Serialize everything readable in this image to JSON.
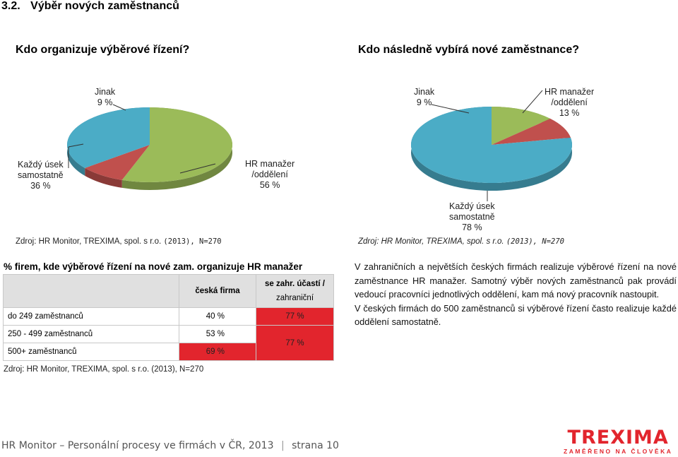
{
  "section": {
    "number": "3.2.",
    "title": "Výběr nových zaměstnanců"
  },
  "left_chart": {
    "question": "Kdo organizuje výběrové řízení?",
    "labels": [
      {
        "line1": "Jinak",
        "line2": "9 %"
      },
      {
        "line1": "Každý úsek",
        "line2": "samostatně",
        "line3": "36 %"
      },
      {
        "line1": "HR manažer",
        "line2": "/oddělení",
        "line3": "56 %"
      }
    ],
    "source": {
      "prefix": "Zdroj: HR Monitor, TREXIMA, spol. s r.o.",
      "suffix": "(2013), N=270"
    }
  },
  "right_chart": {
    "question": "Kdo následně vybírá nové zaměstnance?",
    "labels": [
      {
        "line1": "Jinak",
        "line2": "9 %"
      },
      {
        "line1": "HR manažer",
        "line2": "/oddělení",
        "line3": "13 %"
      },
      {
        "line1": "Každý úsek",
        "line2": "samostatně",
        "line3": "78 %"
      }
    ],
    "source": {
      "prefix": "Zdroj: HR Monitor, TREXIMA, spol. s r.o.",
      "suffix": "(2013), N=270"
    }
  },
  "chart_data": [
    {
      "type": "pie",
      "title": "Kdo organizuje výběrové řízení?",
      "categories": [
        "HR manažer /oddělení",
        "Jinak",
        "Každý úsek samostatně"
      ],
      "values": [
        56,
        9,
        36
      ],
      "unit": "%",
      "colors": [
        "#9bbb59",
        "#c0504d",
        "#4bacc6"
      ]
    },
    {
      "type": "pie",
      "title": "Kdo následně vybírá nové zaměstnance?",
      "categories": [
        "HR manažer /oddělení",
        "Jinak",
        "Každý úsek samostatně"
      ],
      "values": [
        13,
        9,
        78
      ],
      "unit": "%",
      "colors": [
        "#9bbb59",
        "#c0504d",
        "#4bacc6"
      ]
    }
  ],
  "table": {
    "title": "% firem, kde výběrové řízení na nové zam. organizuje HR manažer",
    "col1": "česká firma",
    "col2_line1": "se zahr. účastí /",
    "col2_line2": "zahraniční",
    "rows": [
      {
        "label": "do 249 zaměstnanců",
        "czech": "40 %",
        "foreign": "77 %"
      },
      {
        "label": "250 - 499 zaměstnanců",
        "czech": "53 %"
      },
      {
        "label": "500+ zaměstnanců",
        "czech": "69 %"
      }
    ],
    "merged_foreign": "77 %",
    "source": "Zdroj: HR Monitor, TREXIMA, spol. s r.o. (2013), N=270"
  },
  "paragraphs": [
    "V zahraničních a největších českých firmách realizuje výběrové řízení na nové zaměstnance HR manažer. Samotný výběr nových zaměstnanců pak provádí vedoucí pracovníci jednotlivých oddělení, kam má nový pracovník nastoupit.",
    "V českých firmách do 500 zaměstnanců si výběrové řízení často realizuje každé oddělení samostatně."
  ],
  "footer": {
    "publication": "HR Monitor – Personální procesy ve firmách v ČR, 2013",
    "page": "strana 10"
  },
  "logo": {
    "name": "TREXIMA",
    "tagline": "ZAMĚŘENO NA ČLOVĚKA"
  }
}
